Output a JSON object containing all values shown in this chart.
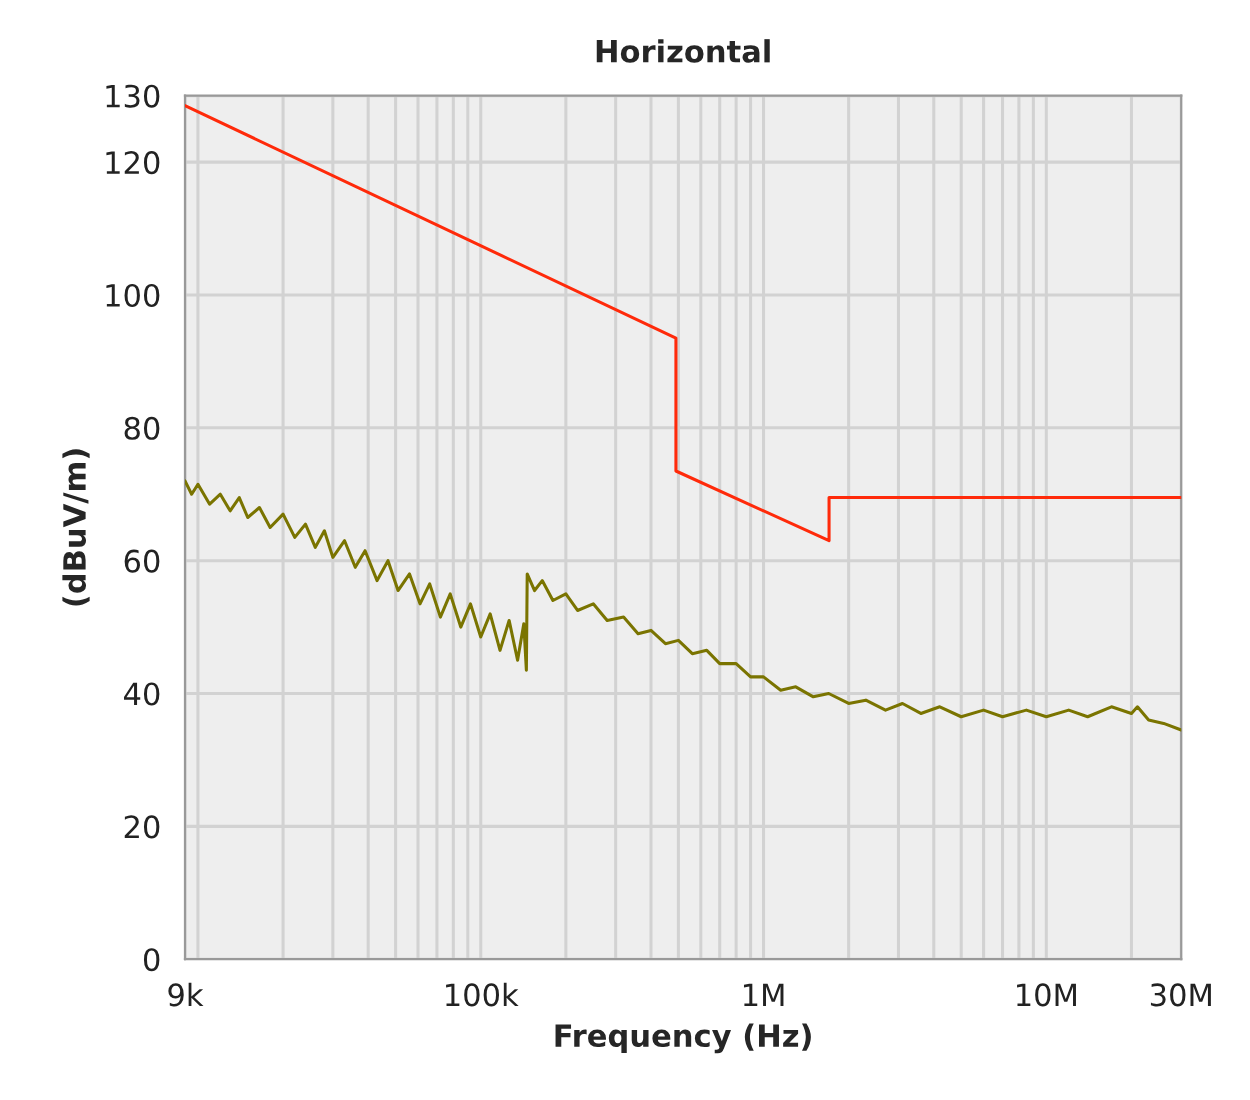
{
  "chart_data": {
    "type": "line",
    "title": "Horizontal",
    "xlabel": "Frequency (Hz)",
    "ylabel": "(dBuV/m)",
    "log": "x",
    "xlim": [
      9000,
      30000000
    ],
    "xticks": [
      {
        "value": 9000,
        "label": "9k"
      },
      {
        "value": 10000,
        "label": null
      },
      {
        "value": 100000,
        "label": "100k"
      },
      {
        "value": 1000000,
        "label": "1M"
      },
      {
        "value": 10000000,
        "label": "10M"
      },
      {
        "value": 30000000,
        "label": "30M"
      }
    ],
    "ylim": [
      0,
      130
    ],
    "yticks": [
      0,
      20,
      40,
      60,
      80,
      100,
      120,
      130
    ],
    "grid": true,
    "marker": "none",
    "line_style": "solid",
    "series": [
      {
        "color": "#ff2a0a",
        "x": [
          9000,
          490000,
          490000,
          1705000,
          1705000,
          30000000
        ],
        "values": [
          128.5,
          93.5,
          73.5,
          63,
          69.5,
          69.5
        ]
      },
      {
        "color": "#7a7400",
        "x": [
          9000,
          9500,
          10000,
          11000,
          12000,
          13000,
          14000,
          15000,
          16500,
          18000,
          20000,
          22000,
          24000,
          26000,
          28000,
          30000,
          33000,
          36000,
          39000,
          43000,
          47000,
          51000,
          56000,
          61000,
          66000,
          72000,
          78000,
          85000,
          92000,
          100000,
          108000,
          117000,
          126000,
          135000,
          142000,
          145000,
          146000,
          155000,
          165000,
          180000,
          200000,
          220000,
          250000,
          280000,
          320000,
          360000,
          400000,
          450000,
          500000,
          560000,
          630000,
          700000,
          800000,
          900000,
          1000000,
          1150000,
          1300000,
          1500000,
          1700000,
          2000000,
          2300000,
          2700000,
          3100000,
          3600000,
          4200000,
          5000000,
          6000000,
          7000000,
          8500000,
          10000000,
          12000000,
          14000000,
          17000000,
          20000000,
          21000000,
          23000000,
          26000000,
          30000000
        ],
        "values": [
          72,
          70,
          71.5,
          68.5,
          70,
          67.5,
          69.5,
          66.5,
          68,
          65,
          67,
          63.5,
          65.5,
          62,
          64.5,
          60.5,
          63,
          59,
          61.5,
          57,
          60,
          55.5,
          58,
          53.5,
          56.5,
          51.5,
          55,
          50,
          53.5,
          48.5,
          52,
          46.5,
          51,
          45,
          50.5,
          43.5,
          58,
          55.5,
          57,
          54,
          55,
          52.5,
          53.5,
          51,
          51.5,
          49,
          49.5,
          47.5,
          48,
          46,
          46.5,
          44.5,
          44.5,
          42.5,
          42.5,
          40.5,
          41,
          39.5,
          40,
          38.5,
          39,
          37.5,
          38.5,
          37,
          38,
          36.5,
          37.5,
          36.5,
          37.5,
          36.5,
          37.5,
          36.5,
          38,
          37,
          38,
          36,
          35.5,
          34.5
        ]
      }
    ]
  }
}
